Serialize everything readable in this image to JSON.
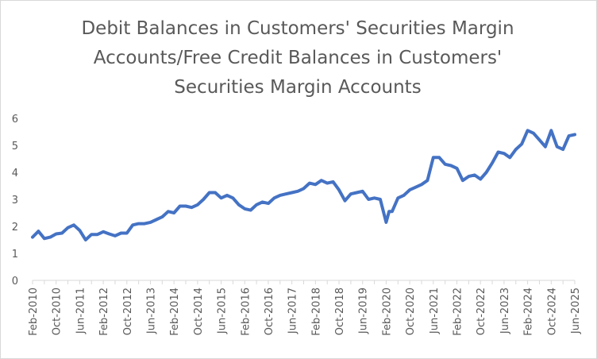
{
  "chart_data": {
    "type": "line",
    "title_lines": [
      "Debit Balances in Customers' Securities Margin",
      "Accounts/Free Credit Balances in Customers'",
      "Securities Margin Accounts"
    ],
    "xlabel": "",
    "ylabel": "",
    "ylim": [
      0,
      6
    ],
    "yticks": [
      "0",
      "1",
      "2",
      "3",
      "4",
      "5",
      "6"
    ],
    "x_range": [
      "2010-02",
      "2025-06"
    ],
    "xticks": [
      "Feb-2010",
      "Oct-2010",
      "Jun-2011",
      "Feb-2012",
      "Oct-2012",
      "Jun-2013",
      "Feb-2014",
      "Oct-2014",
      "Jun-2015",
      "Feb-2016",
      "Oct-2016",
      "Jun-2017",
      "Feb-2018",
      "Oct-2018",
      "Jun-2019",
      "Feb-2020",
      "Oct-2020",
      "Jun-2021",
      "Feb-2022",
      "Oct-2022",
      "Jun-2023",
      "Feb-2024",
      "Oct-2024",
      "Jun-2025"
    ],
    "grid": false,
    "legend": "none",
    "line_color": "#4472c4",
    "series": [
      {
        "x": [
          "2010-02",
          "2010-04",
          "2010-06",
          "2010-08",
          "2010-10",
          "2010-12",
          "2011-02",
          "2011-04",
          "2011-06",
          "2011-08",
          "2011-10",
          "2011-12",
          "2012-02",
          "2012-04",
          "2012-06",
          "2012-08",
          "2012-10",
          "2012-12",
          "2013-02",
          "2013-04",
          "2013-06",
          "2013-08",
          "2013-10",
          "2013-12",
          "2014-02",
          "2014-04",
          "2014-06",
          "2014-08",
          "2014-10",
          "2014-12",
          "2015-02",
          "2015-04",
          "2015-06",
          "2015-08",
          "2015-10",
          "2015-12",
          "2016-02",
          "2016-04",
          "2016-06",
          "2016-08",
          "2016-10",
          "2016-12",
          "2017-02",
          "2017-04",
          "2017-06",
          "2017-08",
          "2017-10",
          "2017-12",
          "2018-02",
          "2018-04",
          "2018-06",
          "2018-08",
          "2018-10",
          "2018-12",
          "2019-02",
          "2019-04",
          "2019-06",
          "2019-08",
          "2019-10",
          "2019-12",
          "2020-02",
          "2020-03",
          "2020-04",
          "2020-06",
          "2020-08",
          "2020-10",
          "2020-12",
          "2021-02",
          "2021-04",
          "2021-06",
          "2021-08",
          "2021-10",
          "2021-12",
          "2022-02",
          "2022-04",
          "2022-06",
          "2022-08",
          "2022-10",
          "2022-12",
          "2023-02",
          "2023-04",
          "2023-06",
          "2023-08",
          "2023-10",
          "2023-12",
          "2024-02",
          "2024-04",
          "2024-06",
          "2024-08",
          "2024-10",
          "2024-12",
          "2025-02",
          "2025-04",
          "2025-06"
        ],
        "values": [
          1.6,
          1.82,
          1.55,
          1.6,
          1.72,
          1.75,
          1.95,
          2.05,
          1.85,
          1.5,
          1.7,
          1.7,
          1.8,
          1.72,
          1.65,
          1.75,
          1.75,
          2.05,
          2.1,
          2.1,
          2.15,
          2.25,
          2.35,
          2.55,
          2.5,
          2.75,
          2.75,
          2.7,
          2.8,
          3.0,
          3.25,
          3.25,
          3.05,
          3.15,
          3.05,
          2.8,
          2.65,
          2.6,
          2.8,
          2.9,
          2.85,
          3.05,
          3.15,
          3.2,
          3.25,
          3.3,
          3.4,
          3.6,
          3.55,
          3.7,
          3.6,
          3.65,
          3.35,
          2.95,
          3.2,
          3.25,
          3.3,
          3.0,
          3.05,
          3.0,
          2.15,
          2.55,
          2.55,
          3.05,
          3.15,
          3.35,
          3.45,
          3.55,
          3.7,
          4.55,
          4.55,
          4.3,
          4.25,
          4.15,
          3.7,
          3.85,
          3.9,
          3.75,
          4.0,
          4.35,
          4.75,
          4.7,
          4.55,
          4.85,
          5.05,
          5.55,
          5.45,
          5.2,
          4.95,
          5.55,
          4.95,
          4.85,
          5.35,
          5.4
        ]
      }
    ]
  }
}
